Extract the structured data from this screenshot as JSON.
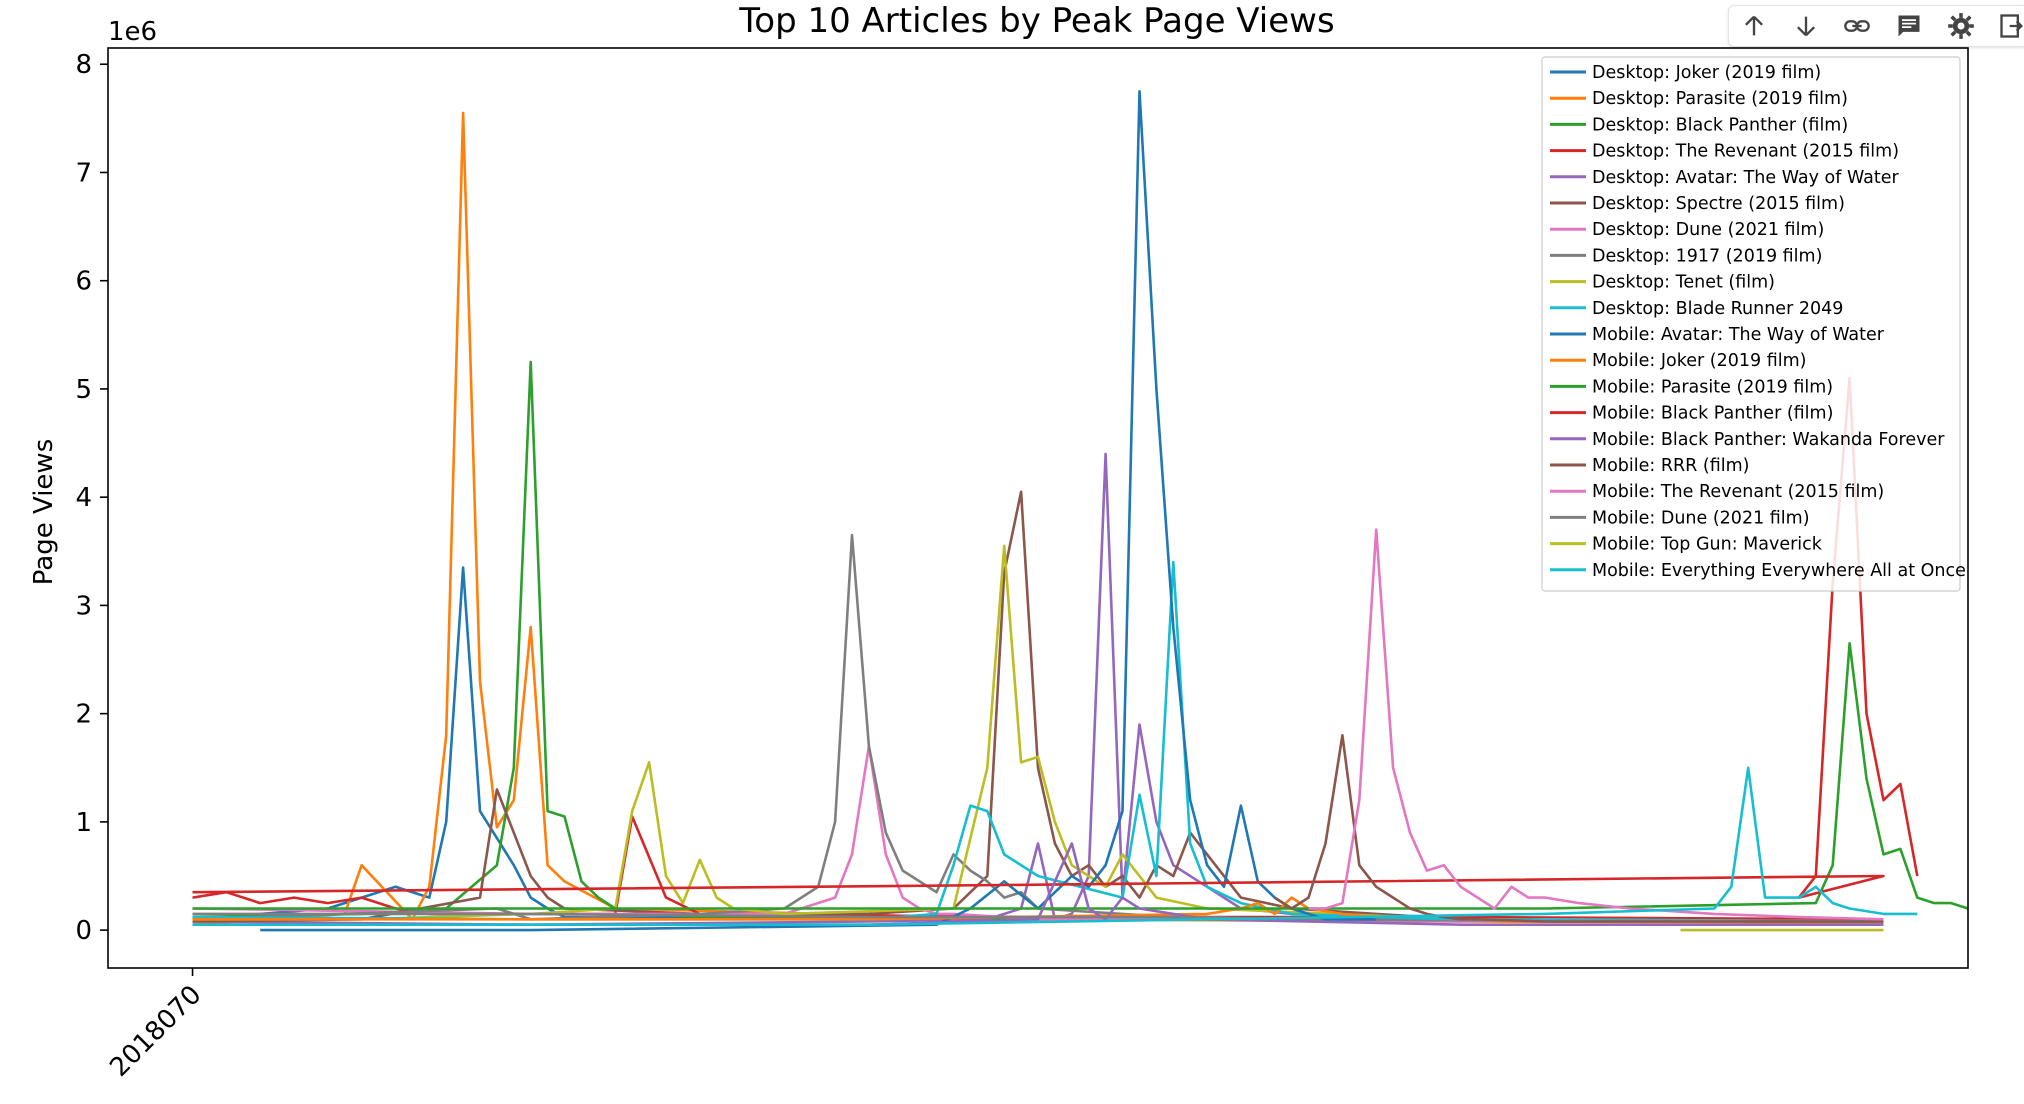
{
  "toolbar": {
    "buttons": [
      {
        "icon": "arrow-up-icon"
      },
      {
        "icon": "arrow-down-icon"
      },
      {
        "icon": "link-icon"
      },
      {
        "icon": "comment-icon"
      },
      {
        "icon": "gear-icon"
      },
      {
        "icon": "open-in-new-icon"
      }
    ]
  },
  "chart_data": {
    "type": "line",
    "title": "Top 10 Articles by Peak Page Views",
    "ylabel": "Page Views",
    "xlabel": "",
    "y_offset_text": "1e6",
    "ylim": [
      -0.35,
      8.15
    ],
    "yticks": [
      0,
      1,
      2,
      3,
      4,
      5,
      6,
      7,
      8
    ],
    "x_tick_labels": [
      {
        "x": 0,
        "label": "2018070"
      }
    ],
    "xlim": [
      -5,
      105
    ],
    "grid": false,
    "legend_position": "upper right",
    "series": [
      {
        "name": "Desktop: Joker (2019 film)",
        "color": "#1f77b4",
        "x": [
          0,
          8,
          12,
          14,
          15,
          16,
          17,
          18,
          19,
          20,
          21,
          22,
          40,
          60,
          80,
          100
        ],
        "y": [
          0.1,
          0.2,
          0.4,
          0.3,
          1.0,
          3.35,
          1.1,
          0.85,
          0.6,
          0.3,
          0.2,
          0.12,
          0.1,
          0.1,
          0.08,
          0.08
        ]
      },
      {
        "name": "Desktop: Parasite (2019 film)",
        "color": "#ff7f0e",
        "x": [
          0,
          9,
          10,
          13,
          14,
          15,
          16,
          17,
          18,
          19,
          20,
          21,
          22,
          25,
          50,
          75,
          100
        ],
        "y": [
          0.05,
          0.15,
          0.6,
          0.1,
          0.4,
          1.8,
          7.55,
          2.3,
          0.95,
          1.2,
          2.8,
          0.6,
          0.45,
          0.2,
          0.1,
          0.08,
          0.07
        ]
      },
      {
        "name": "Desktop: Black Panther (film)",
        "color": "#2ca02c",
        "x": [
          0,
          10,
          15,
          18,
          19,
          20,
          21,
          22,
          23,
          24,
          25,
          27,
          30,
          50,
          75,
          100
        ],
        "y": [
          0.12,
          0.15,
          0.2,
          0.6,
          1.5,
          5.25,
          1.1,
          1.05,
          0.45,
          0.3,
          0.2,
          0.15,
          0.12,
          0.1,
          0.1,
          0.1
        ]
      },
      {
        "name": "Desktop: The Revenant (2015 film)",
        "color": "#d62728",
        "x": [
          0,
          2,
          4,
          6,
          8,
          10,
          12,
          14,
          20,
          25,
          26,
          28,
          30,
          50,
          75,
          100
        ],
        "y": [
          0.3,
          0.35,
          0.25,
          0.3,
          0.25,
          0.3,
          0.2,
          0.15,
          0.15,
          0.15,
          1.05,
          0.3,
          0.15,
          0.12,
          0.12,
          0.1
        ]
      },
      {
        "name": "Desktop: Avatar: The Way of Water",
        "color": "#9467bd",
        "x": [
          0,
          20,
          40,
          47,
          49,
          50,
          51,
          52,
          53,
          54,
          55,
          56,
          57,
          58,
          60,
          62,
          65,
          75,
          100
        ],
        "y": [
          0.08,
          0.05,
          0.08,
          0.1,
          0.2,
          0.8,
          0.1,
          0.15,
          0.5,
          4.4,
          0.3,
          1.9,
          1.0,
          0.6,
          0.4,
          0.2,
          0.15,
          0.1,
          0.08
        ]
      },
      {
        "name": "Desktop: Spectre (2015 film)",
        "color": "#8c564b",
        "x": [
          0,
          10,
          17,
          18,
          19,
          20,
          21,
          22,
          30,
          40,
          45,
          47,
          48,
          49,
          50,
          51,
          52,
          53,
          54,
          55,
          56,
          57,
          58,
          59,
          60,
          62,
          65,
          75,
          100
        ],
        "y": [
          0.08,
          0.1,
          0.3,
          1.3,
          0.9,
          0.5,
          0.3,
          0.2,
          0.15,
          0.15,
          0.2,
          0.5,
          3.3,
          4.05,
          1.5,
          0.8,
          0.5,
          0.6,
          0.4,
          0.5,
          0.3,
          0.6,
          0.5,
          0.9,
          0.7,
          0.3,
          0.2,
          0.1,
          0.08
        ]
      },
      {
        "name": "Desktop: Dune (2021 film)",
        "color": "#e377c2",
        "x": [
          0,
          20,
          35,
          38,
          39,
          40,
          41,
          42,
          43,
          44,
          45,
          50,
          60,
          75,
          80,
          100
        ],
        "y": [
          0.2,
          0.15,
          0.15,
          0.3,
          0.7,
          1.7,
          0.7,
          0.3,
          0.2,
          0.15,
          0.15,
          0.1,
          0.1,
          0.08,
          0.1,
          0.08
        ]
      },
      {
        "name": "Desktop: 1917 (2019 film)",
        "color": "#7f7f7f",
        "x": [
          0,
          18,
          20,
          30,
          35,
          37,
          38,
          39,
          40,
          41,
          42,
          43,
          44,
          45,
          46,
          47,
          48,
          49,
          50,
          55,
          60,
          100
        ],
        "y": [
          0.1,
          0.2,
          0.1,
          0.15,
          0.2,
          0.4,
          1.0,
          3.65,
          1.7,
          0.9,
          0.55,
          0.45,
          0.35,
          0.7,
          0.55,
          0.45,
          0.3,
          0.35,
          0.2,
          0.15,
          0.1,
          0.08
        ]
      },
      {
        "name": "Desktop: Tenet (film)",
        "color": "#bcbd22",
        "x": [
          0,
          10,
          20,
          25,
          26,
          27,
          28,
          29,
          30,
          31,
          32,
          35,
          45,
          47,
          48,
          49,
          50,
          51,
          52,
          53,
          54,
          55,
          56,
          57,
          60,
          75,
          100
        ],
        "y": [
          0.1,
          0.1,
          0.15,
          0.2,
          1.1,
          1.55,
          0.5,
          0.25,
          0.65,
          0.3,
          0.2,
          0.15,
          0.2,
          1.5,
          3.55,
          1.55,
          1.6,
          1.0,
          0.6,
          0.5,
          0.4,
          0.7,
          0.5,
          0.3,
          0.2,
          0.1,
          0.08
        ]
      },
      {
        "name": "Desktop: Blade Runner 2049",
        "color": "#17becf",
        "x": [
          0,
          20,
          40,
          44,
          45,
          46,
          47,
          48,
          50,
          55,
          56,
          57,
          58,
          59,
          60,
          62,
          65,
          70,
          75,
          100
        ],
        "y": [
          0.12,
          0.1,
          0.1,
          0.15,
          0.6,
          1.15,
          1.1,
          0.7,
          0.5,
          0.3,
          1.25,
          0.5,
          3.4,
          0.8,
          0.4,
          0.25,
          0.15,
          0.12,
          0.1,
          0.08
        ]
      },
      {
        "name": "Mobile: Avatar: The Way of Water",
        "color": "#1f77b4",
        "x": [
          4,
          20,
          44,
          46,
          48,
          50,
          52,
          53,
          54,
          55,
          56,
          57,
          58,
          59,
          60,
          61,
          62,
          63,
          64,
          65,
          66,
          67,
          68,
          70
        ],
        "y": [
          0.0,
          0.0,
          0.05,
          0.2,
          0.45,
          0.2,
          0.5,
          0.4,
          0.6,
          1.1,
          7.75,
          5.0,
          2.8,
          1.2,
          0.6,
          0.4,
          1.15,
          0.45,
          0.3,
          0.2,
          0.15,
          0.1,
          0.1,
          0.1
        ]
      },
      {
        "name": "Mobile: Joker (2019 film)",
        "color": "#ff7f0e",
        "x": [
          0,
          10,
          20,
          40,
          60,
          62,
          63,
          64,
          65,
          66,
          68,
          70
        ],
        "y": [
          0.1,
          0.1,
          0.1,
          0.1,
          0.15,
          0.2,
          0.25,
          0.15,
          0.3,
          0.2,
          0.15,
          0.12
        ]
      },
      {
        "name": "Mobile: Parasite (2019 film)",
        "color": "#2ca02c",
        "x": [
          0,
          20,
          40,
          60,
          80,
          96,
          97,
          98,
          99,
          100,
          101,
          102,
          103,
          104,
          105
        ],
        "y": [
          0.2,
          0.2,
          0.2,
          0.2,
          0.2,
          0.25,
          0.6,
          2.65,
          1.4,
          0.7,
          0.75,
          0.3,
          0.25,
          0.25,
          0.2
        ]
      },
      {
        "name": "Mobile: Black Panther (film)",
        "color": "#d62728",
        "x": [
          0,
          50,
          100,
          95,
          96,
          97,
          98,
          99,
          100,
          101,
          102
        ],
        "y": [
          0.35,
          0.42,
          0.5,
          0.3,
          0.5,
          3.2,
          5.1,
          2.0,
          1.2,
          1.35,
          0.5
        ]
      },
      {
        "name": "Mobile: Black Panther: Wakanda Forever",
        "color": "#9467bd",
        "x": [
          0,
          20,
          40,
          50,
          52,
          53,
          54,
          55,
          56,
          60,
          75,
          100
        ],
        "y": [
          0.05,
          0.05,
          0.05,
          0.1,
          0.8,
          0.2,
          0.1,
          0.3,
          0.2,
          0.1,
          0.05,
          0.05
        ]
      },
      {
        "name": "Mobile: RRR (film)",
        "color": "#8c564b",
        "x": [
          64,
          65,
          66,
          67,
          68,
          69,
          70,
          71,
          72,
          73,
          74,
          75,
          76,
          80,
          90,
          100
        ],
        "y": [
          0.3,
          0.2,
          0.3,
          0.8,
          1.8,
          0.6,
          0.4,
          0.3,
          0.2,
          0.15,
          0.12,
          0.1,
          0.1,
          0.08,
          0.08,
          0.08
        ]
      },
      {
        "name": "Mobile: The Revenant (2015 film)",
        "color": "#e377c2",
        "x": [
          66,
          67,
          68,
          69,
          70,
          71,
          72,
          73,
          74,
          75,
          76,
          77,
          78,
          79,
          80,
          82,
          85,
          90,
          95,
          100
        ],
        "y": [
          0.2,
          0.2,
          0.25,
          1.2,
          3.7,
          1.5,
          0.9,
          0.55,
          0.6,
          0.4,
          0.3,
          0.2,
          0.4,
          0.3,
          0.3,
          0.25,
          0.2,
          0.15,
          0.12,
          0.1
        ]
      },
      {
        "name": "Mobile: Dune (2021 film)",
        "color": "#7f7f7f",
        "x": [
          0,
          20,
          40,
          60,
          64
        ],
        "y": [
          0.15,
          0.15,
          0.12,
          0.12,
          0.1
        ]
      },
      {
        "name": "Mobile: Top Gun: Maverick",
        "color": "#bcbd22",
        "x": [
          88,
          92,
          96,
          100
        ],
        "y": [
          0.0,
          0.0,
          0.0,
          0.0
        ]
      },
      {
        "name": "Mobile: Everything Everywhere All at Once",
        "color": "#17becf",
        "x": [
          0,
          20,
          40,
          60,
          80,
          90,
          91,
          92,
          93,
          94,
          95,
          96,
          97,
          98,
          100,
          102
        ],
        "y": [
          0.05,
          0.05,
          0.05,
          0.1,
          0.15,
          0.2,
          0.4,
          1.5,
          0.3,
          0.3,
          0.3,
          0.4,
          0.25,
          0.2,
          0.15,
          0.15
        ]
      }
    ]
  }
}
